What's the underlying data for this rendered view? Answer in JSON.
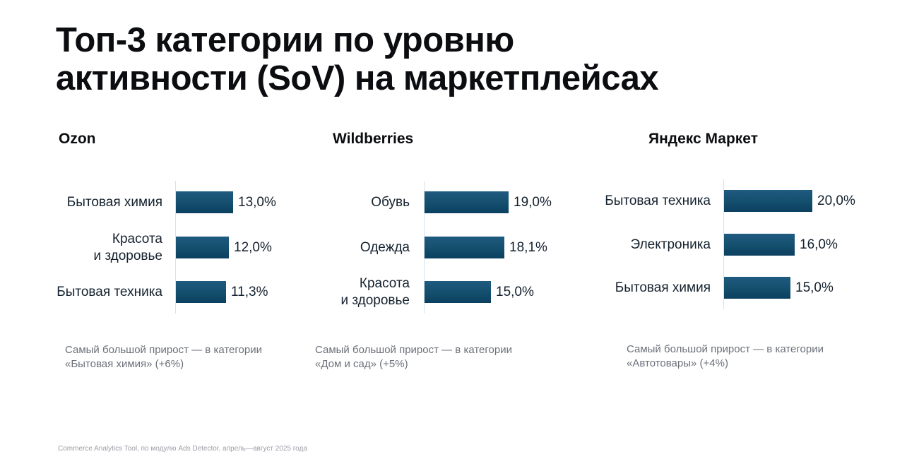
{
  "title_lines": [
    "Топ-3 категории по уровню",
    "активности (SoV) на маркетплейсах"
  ],
  "chart_data": [
    {
      "type": "bar",
      "orientation": "horizontal",
      "title": "Ozon",
      "categories": [
        "Бытовая химия",
        "Красота\nи здоровье",
        "Бытовая техника"
      ],
      "values": [
        13.0,
        12.0,
        11.3
      ],
      "value_labels": [
        "13,0%",
        "12,0%",
        "11,3%"
      ],
      "xlim": [
        0,
        20
      ],
      "note": [
        "Самый большой прирост — в категории",
        "«Бытовая химия» (+6%)"
      ]
    },
    {
      "type": "bar",
      "orientation": "horizontal",
      "title": "Wildberries",
      "categories": [
        "Обувь",
        "Одежда",
        "Красота\nи здоровье"
      ],
      "values": [
        19.0,
        18.1,
        15.0
      ],
      "value_labels": [
        "19,0%",
        "18,1%",
        "15,0%"
      ],
      "xlim": [
        0,
        20
      ],
      "note": [
        "Самый большой прирост — в категории",
        "«Дом и сад» (+5%)"
      ]
    },
    {
      "type": "bar",
      "orientation": "horizontal",
      "title": "Яндекс Маркет",
      "categories": [
        "Бытовая техника",
        "Электроника",
        "Бытовая химия"
      ],
      "values": [
        20.0,
        16.0,
        15.0
      ],
      "value_labels": [
        "20,0%",
        "16,0%",
        "15,0%"
      ],
      "xlim": [
        0,
        20
      ],
      "note": [
        "Самый большой прирост — в категории",
        "«Автотовары» (+4%)"
      ]
    }
  ],
  "source": "Commerce Analytics Tool, по модулю Ads Detector, апрель—август 2025 года",
  "colors": {
    "bar_top": "#1f5a80",
    "bar_bottom": "#0b3f60",
    "axis": "#d5e3ef",
    "note": "#6c7079"
  }
}
